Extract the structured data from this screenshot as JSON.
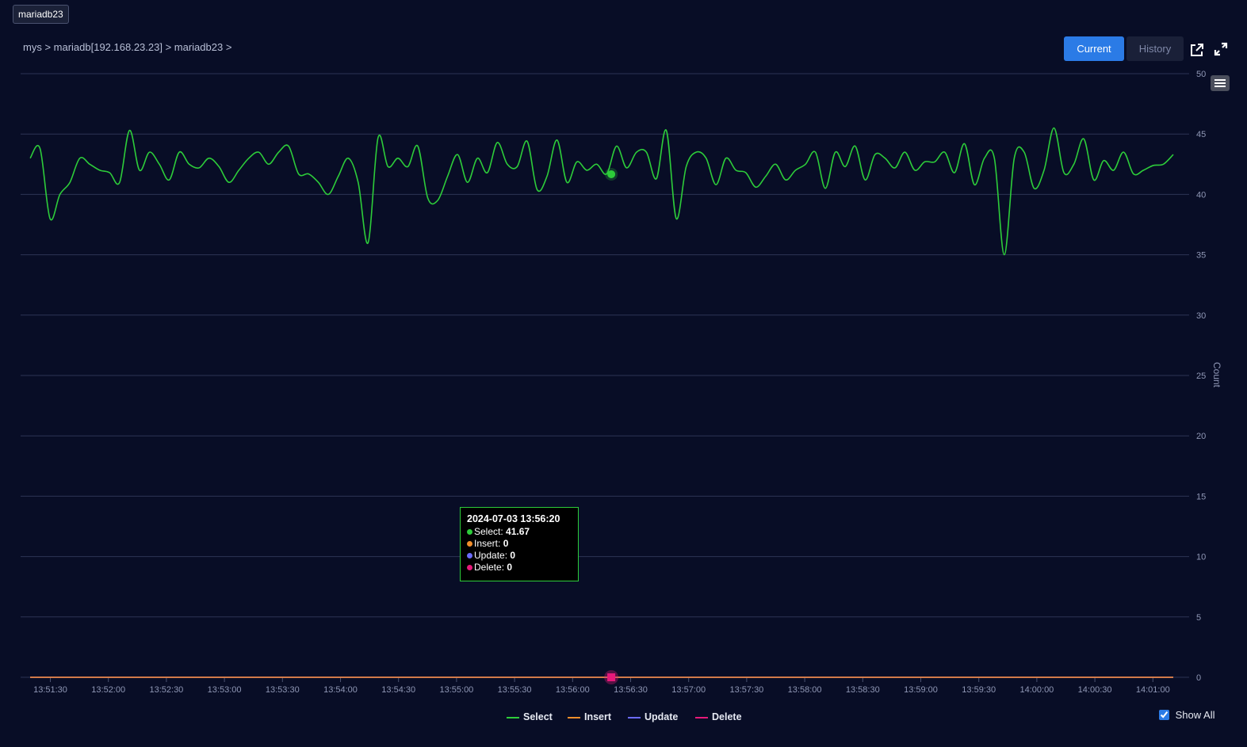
{
  "title_badge": "mariadb23",
  "breadcrumb": "mys > mariadb[192.168.23.23] > mariadb23 >",
  "toolbar": {
    "current_label": "Current",
    "history_label": "History"
  },
  "icons": {
    "external": "external-link-icon",
    "expand": "expand-icon",
    "menu": "hamburger-menu-icon"
  },
  "tooltip": {
    "timestamp": "2024-07-03 13:56:20",
    "rows": [
      {
        "name": "Select",
        "value": "41.67",
        "color": "#2dcc3a"
      },
      {
        "name": "Insert",
        "value": "0",
        "color": "#f28e2b"
      },
      {
        "name": "Update",
        "value": "0",
        "color": "#6b6bff"
      },
      {
        "name": "Delete",
        "value": "0",
        "color": "#e6197a"
      }
    ]
  },
  "show_all_label": "Show All",
  "show_all_checked": true,
  "chart_data": {
    "type": "line",
    "ylabel": "Count",
    "ylim": [
      0,
      50
    ],
    "y_ticks": [
      0,
      5,
      10,
      15,
      20,
      25,
      30,
      35,
      40,
      45,
      50
    ],
    "x_ticks": [
      "13:51:30",
      "13:52:00",
      "13:52:30",
      "13:53:00",
      "13:53:30",
      "13:54:00",
      "13:54:30",
      "13:55:00",
      "13:55:30",
      "13:56:00",
      "13:56:30",
      "13:57:00",
      "13:57:30",
      "13:58:00",
      "13:58:30",
      "13:59:00",
      "13:59:30",
      "14:00:00",
      "14:00:30",
      "14:01:00"
    ],
    "grid": true,
    "legend_position": "bottom",
    "highlight_time": "13:56:20",
    "series": [
      {
        "name": "Select",
        "color": "#2dcc3a",
        "values": [
          43.0,
          43.8,
          38.0,
          40.0,
          41.0,
          43.0,
          42.5,
          42.0,
          41.8,
          41.0,
          45.3,
          42.0,
          43.5,
          42.5,
          41.2,
          43.5,
          42.5,
          42.2,
          43.0,
          42.3,
          41.0,
          42.0,
          43.0,
          43.5,
          42.5,
          43.5,
          44.0,
          41.7,
          41.7,
          41.0,
          40.0,
          41.5,
          43.0,
          41.0,
          36.0,
          44.7,
          42.3,
          43.0,
          42.3,
          44.0,
          39.7,
          39.5,
          41.5,
          43.3,
          41.0,
          43.0,
          41.8,
          44.3,
          42.5,
          42.3,
          44.4,
          40.4,
          41.5,
          44.5,
          41.0,
          42.7,
          42.0,
          42.5,
          41.7,
          44.0,
          42.2,
          43.5,
          43.5,
          41.3,
          45.3,
          38.0,
          42.3,
          43.5,
          43.0,
          40.8,
          43.0,
          42.0,
          41.8,
          40.6,
          41.5,
          42.5,
          41.2,
          42.0,
          42.5,
          43.5,
          40.5,
          43.5,
          42.3,
          44.0,
          41.2,
          43.3,
          43.0,
          42.2,
          43.5,
          42.0,
          42.7,
          42.7,
          43.5,
          41.8,
          44.2,
          40.8,
          43.0,
          43.0,
          35.0,
          43.0,
          43.5,
          40.5,
          42.0,
          45.5,
          41.8,
          42.5,
          44.6,
          41.2,
          42.8,
          42.0,
          43.5,
          41.7,
          42.0,
          42.4,
          42.5,
          43.3
        ]
      },
      {
        "name": "Insert",
        "color": "#f28e2b",
        "values": [
          0
        ]
      },
      {
        "name": "Update",
        "color": "#6b6bff",
        "values": [
          0
        ]
      },
      {
        "name": "Delete",
        "color": "#e6197a",
        "values": [
          0
        ]
      }
    ]
  }
}
